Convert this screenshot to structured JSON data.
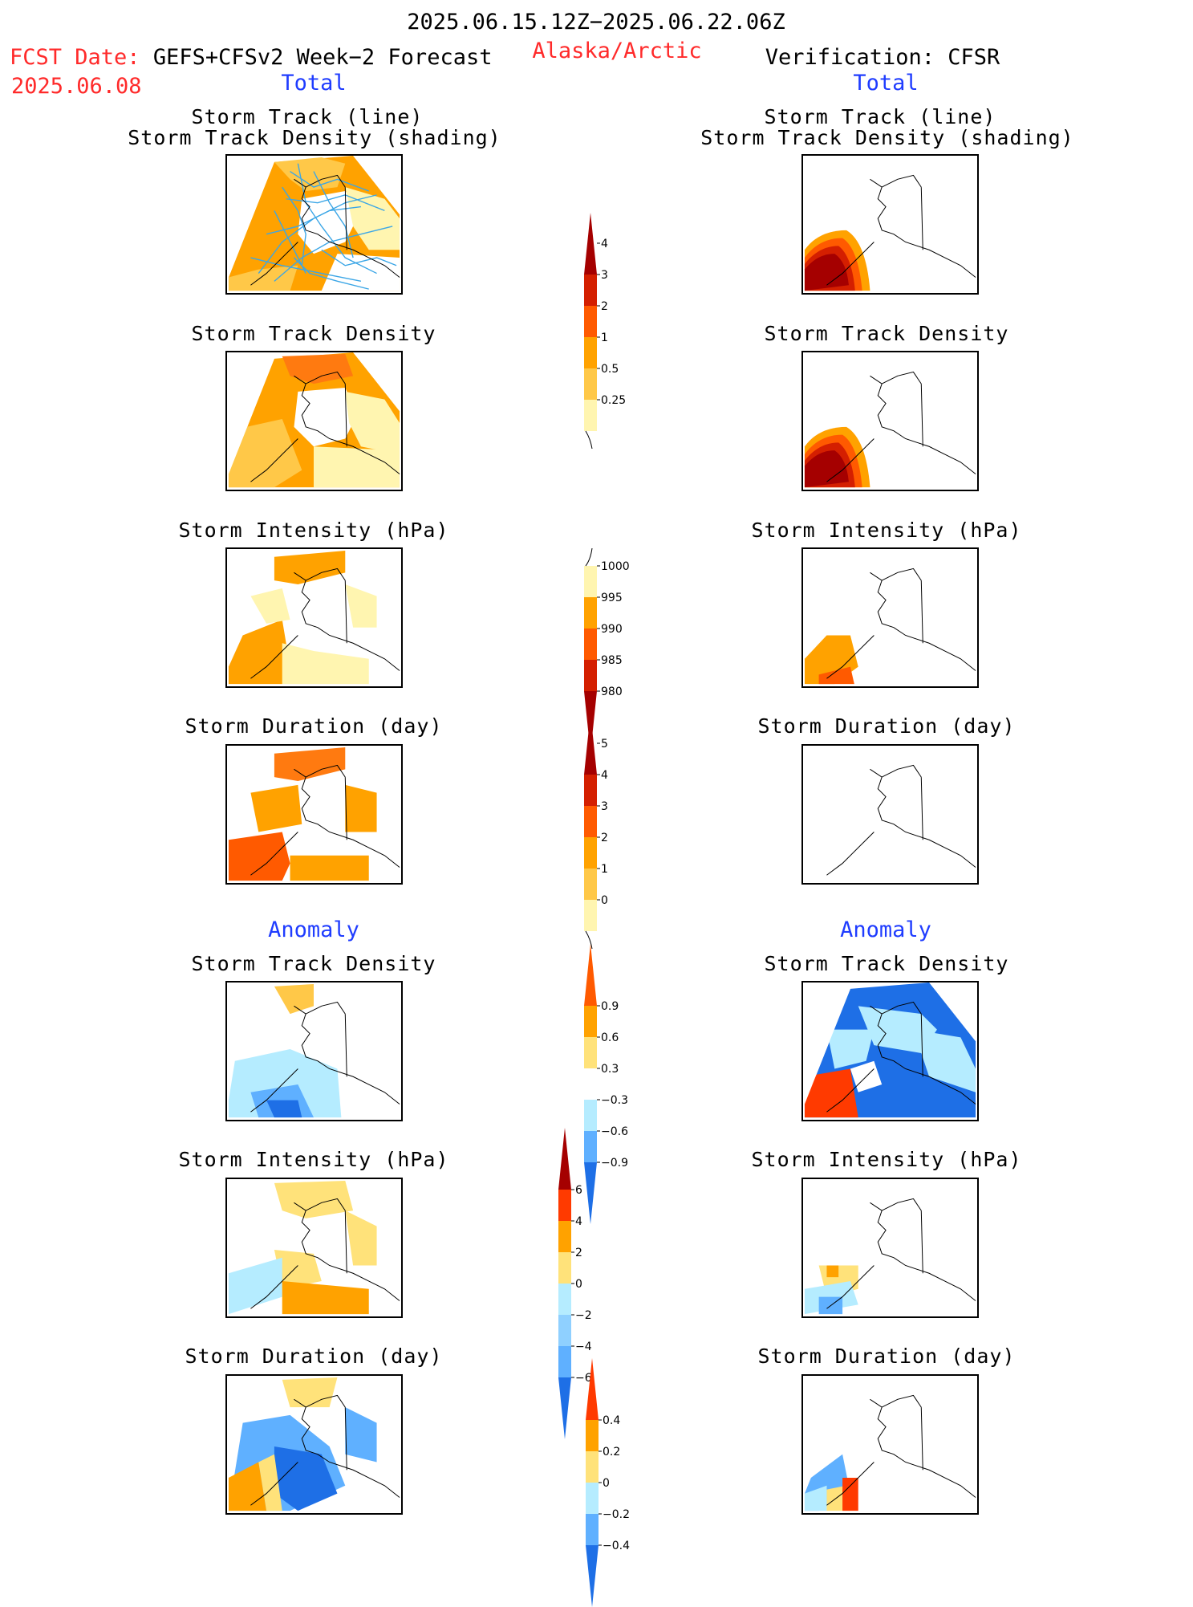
{
  "header": {
    "period": "2025.06.15.12Z−2025.06.22.06Z",
    "fcst_label": "FCST Date:",
    "fcst_source": "GEFS+CFSv2 Week−2 Forecast",
    "fcst_date": "2025.06.08",
    "region": "Alaska/Arctic",
    "verification": "Verification: CFSR"
  },
  "sections": {
    "total": "Total",
    "anomaly": "Anomaly"
  },
  "panel_titles": {
    "track_line": "Storm Track (line)",
    "track_shading": "Storm Track Density (shading)",
    "density": "Storm Track Density",
    "intensity": "Storm Intensity (hPa)",
    "duration": "Storm Duration (day)"
  },
  "colorbars": [
    {
      "name": "total-density",
      "labels": [
        "4",
        "3",
        "2",
        "1",
        "0.5",
        "0.25"
      ],
      "colors": [
        "#a50000",
        "#d41f00",
        "#ff5a00",
        "#ffa200",
        "#ffc848",
        "#fff5b0"
      ],
      "top_arrow": true,
      "bottom_arrow": false,
      "bottom_tail": true
    },
    {
      "name": "total-intensity",
      "labels": [
        "1000",
        "995",
        "990",
        "985",
        "980"
      ],
      "colors": [
        "#fff5b0",
        "#ffa200",
        "#ff5a00",
        "#d41f00",
        "#a50000"
      ],
      "top_arrow": false,
      "bottom_arrow": true,
      "top_tail": true
    },
    {
      "name": "total-duration",
      "labels": [
        "5",
        "4",
        "3",
        "2",
        "1",
        "0"
      ],
      "colors": [
        "#a50000",
        "#d41f00",
        "#ff5a00",
        "#ffa200",
        "#ffc848",
        "#fff5b0"
      ],
      "top_arrow": true,
      "bottom_arrow": false,
      "bottom_tail": true
    },
    {
      "name": "anom-density",
      "labels": [
        "0.9",
        "0.6",
        "0.3",
        "−0.3",
        "−0.6",
        "−0.9"
      ],
      "colors": [
        "#ff5a00",
        "#ffa200",
        "#ffe27a",
        "#ffffff",
        "#b5ecff",
        "#5fb0ff",
        "#1e6fe6"
      ],
      "top_arrow": true,
      "bottom_arrow": true
    },
    {
      "name": "anom-intensity",
      "labels": [
        "6",
        "4",
        "2",
        "0",
        "−2",
        "−4",
        "−6"
      ],
      "colors": [
        "#a50000",
        "#ff3a00",
        "#ffa200",
        "#ffe27a",
        "#b5ecff",
        "#8fd0ff",
        "#5fb0ff",
        "#1e6fe6"
      ],
      "top_arrow": true,
      "bottom_arrow": true
    },
    {
      "name": "anom-duration",
      "labels": [
        "0.4",
        "0.2",
        "0",
        "−0.2",
        "−0.4"
      ],
      "colors": [
        "#ff3a00",
        "#ffa200",
        "#ffe27a",
        "#b5ecff",
        "#5fb0ff",
        "#1e6fe6"
      ],
      "top_arrow": true,
      "bottom_arrow": true
    }
  ],
  "colors": {
    "red_text": "#ff2a2a",
    "blue_text": "#1f3cff",
    "track_lines": "#3ba6e6"
  }
}
